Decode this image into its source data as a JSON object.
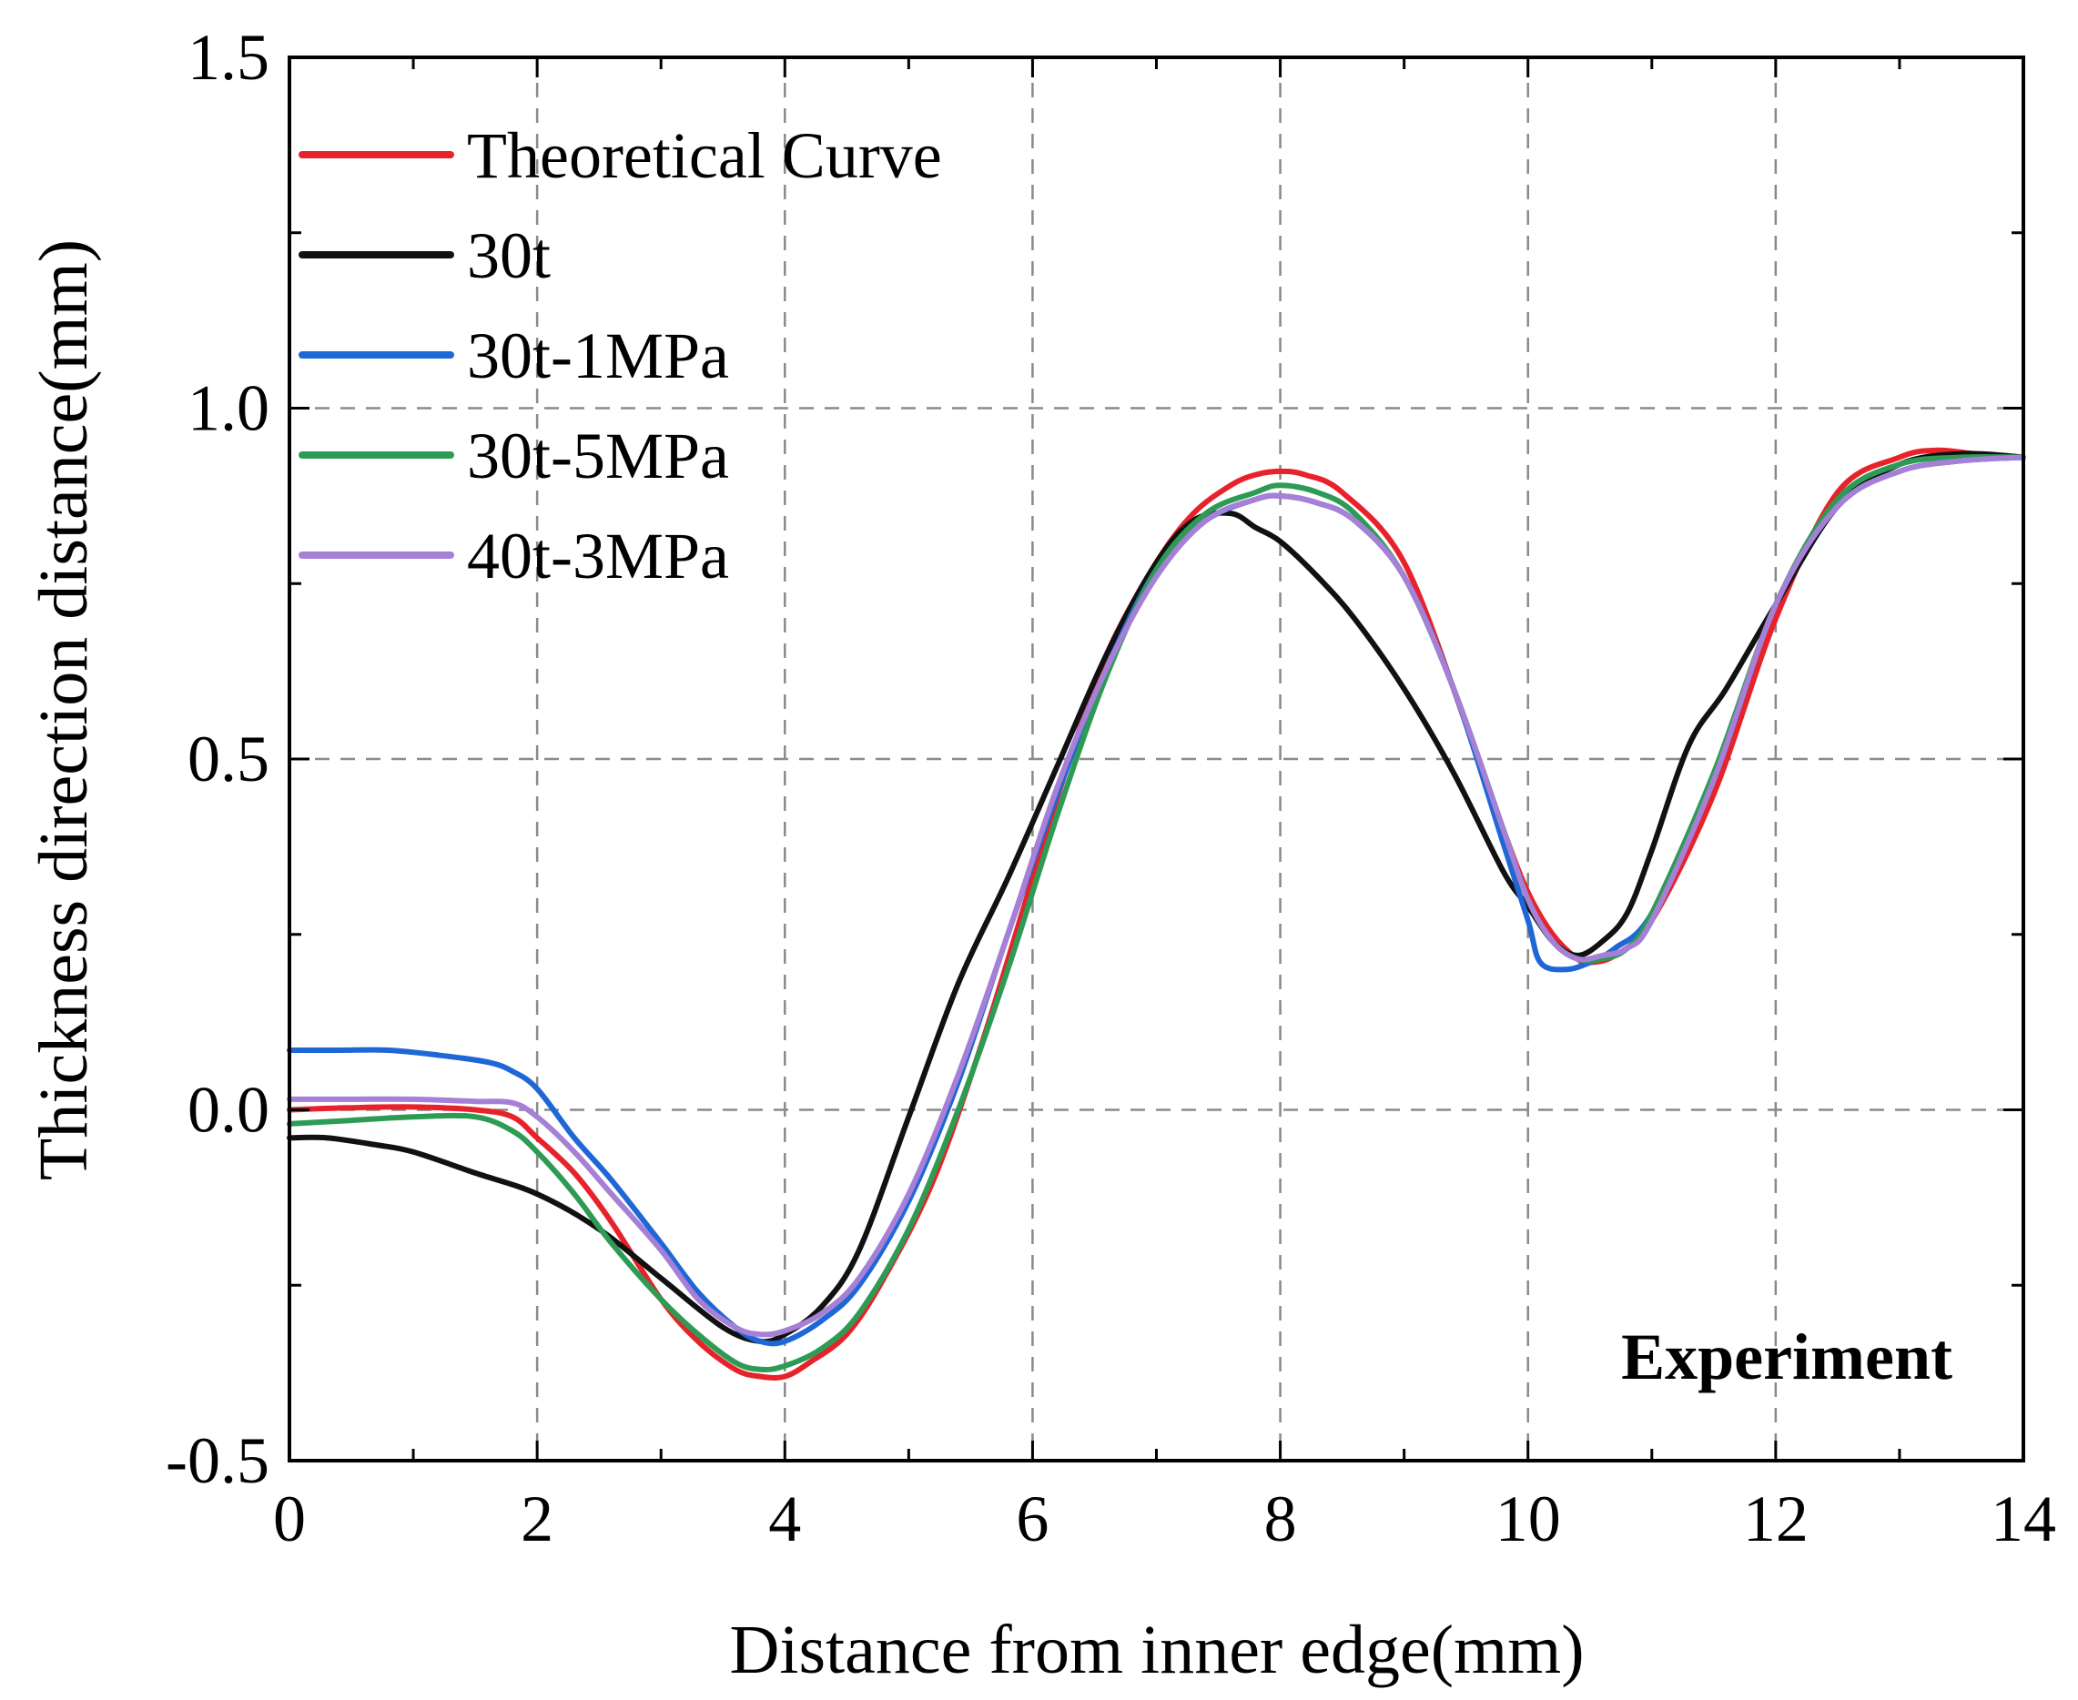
{
  "chart_data": {
    "type": "line",
    "title": "",
    "xlabel": "Distance from inner edge(mm)",
    "ylabel": "Thickness direction distance(mm)",
    "xlim": [
      0,
      14
    ],
    "ylim": [
      -0.5,
      1.5
    ],
    "xticks": [
      0,
      2,
      4,
      6,
      8,
      10,
      12,
      14
    ],
    "xtick_labels": [
      "0",
      "2",
      "4",
      "6",
      "8",
      "10",
      "12",
      "14"
    ],
    "yticks": [
      -0.5,
      0.0,
      0.5,
      1.0,
      1.5
    ],
    "ytick_labels": [
      "-0.5",
      "0.0",
      "0.5",
      "1.0",
      "1.5"
    ],
    "grid": true,
    "legend_position": "top-left",
    "annotation": "Experiment",
    "series": [
      {
        "name": "Theoretical Curve",
        "color": "#e8222a",
        "x": [
          0,
          0.5,
          1,
          1.5,
          1.8,
          2,
          2.3,
          2.6,
          3,
          3.3,
          3.6,
          3.8,
          4,
          4.2,
          4.5,
          4.8,
          5.2,
          5.6,
          6,
          6.3,
          6.6,
          7,
          7.3,
          7.6,
          7.8,
          8,
          8.2,
          8.5,
          9,
          9.5,
          9.8,
          10,
          10.2,
          10.4,
          10.5,
          10.7,
          11,
          11.5,
          12,
          12.5,
          13,
          13.3,
          13.6,
          14
        ],
        "y": [
          0.0,
          0.003,
          0.004,
          0.0,
          -0.01,
          -0.04,
          -0.09,
          -0.16,
          -0.27,
          -0.33,
          -0.37,
          -0.38,
          -0.38,
          -0.36,
          -0.32,
          -0.24,
          -0.1,
          0.1,
          0.33,
          0.5,
          0.65,
          0.78,
          0.85,
          0.89,
          0.905,
          0.91,
          0.905,
          0.88,
          0.78,
          0.55,
          0.4,
          0.31,
          0.25,
          0.215,
          0.21,
          0.22,
          0.27,
          0.45,
          0.7,
          0.88,
          0.93,
          0.94,
          0.935,
          0.93
        ]
      },
      {
        "name": "30t",
        "color": "#111111",
        "x": [
          0,
          0.3,
          0.7,
          1,
          1.5,
          2,
          2.5,
          3,
          3.5,
          3.8,
          4,
          4.3,
          4.6,
          5,
          5.4,
          5.8,
          6.2,
          6.6,
          7,
          7.3,
          7.6,
          7.8,
          8,
          8.3,
          8.6,
          9,
          9.4,
          9.8,
          10,
          10.2,
          10.4,
          10.6,
          10.8,
          11,
          11.3,
          11.6,
          12,
          12.5,
          13,
          13.5,
          14
        ],
        "y": [
          -0.04,
          -0.04,
          -0.05,
          -0.06,
          -0.09,
          -0.12,
          -0.17,
          -0.24,
          -0.31,
          -0.33,
          -0.32,
          -0.28,
          -0.2,
          -0.01,
          0.18,
          0.33,
          0.49,
          0.65,
          0.78,
          0.84,
          0.85,
          0.83,
          0.81,
          0.76,
          0.7,
          0.6,
          0.48,
          0.34,
          0.29,
          0.24,
          0.22,
          0.24,
          0.28,
          0.37,
          0.52,
          0.6,
          0.72,
          0.86,
          0.92,
          0.935,
          0.93
        ]
      },
      {
        "name": "30t-1MPa",
        "color": "#1f66d6",
        "x": [
          0,
          0.4,
          0.8,
          1.2,
          1.6,
          1.8,
          2,
          2.3,
          2.6,
          3,
          3.3,
          3.6,
          3.8,
          4,
          4.3,
          4.6,
          5,
          5.4,
          5.8,
          6.2,
          6.6,
          7,
          7.4,
          7.8,
          8,
          8.3,
          8.6,
          9,
          9.4,
          9.8,
          10,
          10.1,
          10.3,
          10.5,
          10.7,
          11,
          11.5,
          12,
          12.5,
          13,
          13.5,
          14
        ],
        "y": [
          0.085,
          0.085,
          0.085,
          0.078,
          0.068,
          0.055,
          0.03,
          -0.04,
          -0.1,
          -0.19,
          -0.26,
          -0.31,
          -0.33,
          -0.33,
          -0.3,
          -0.25,
          -0.13,
          0.04,
          0.25,
          0.45,
          0.63,
          0.77,
          0.84,
          0.87,
          0.875,
          0.865,
          0.84,
          0.76,
          0.6,
          0.38,
          0.27,
          0.21,
          0.2,
          0.21,
          0.23,
          0.28,
          0.47,
          0.72,
          0.86,
          0.91,
          0.925,
          0.93
        ]
      },
      {
        "name": "30t-5MPa",
        "color": "#2e9b55",
        "x": [
          0,
          0.5,
          1,
          1.5,
          1.8,
          2,
          2.3,
          2.6,
          3,
          3.3,
          3.6,
          3.8,
          4,
          4.3,
          4.6,
          5,
          5.4,
          5.8,
          6.2,
          6.6,
          7,
          7.4,
          7.8,
          8,
          8.3,
          8.6,
          9,
          9.4,
          9.8,
          10,
          10.2,
          10.4,
          10.6,
          10.8,
          11,
          11.5,
          12,
          12.5,
          13,
          13.5,
          14
        ],
        "y": [
          -0.02,
          -0.015,
          -0.01,
          -0.01,
          -0.03,
          -0.06,
          -0.12,
          -0.19,
          -0.27,
          -0.32,
          -0.36,
          -0.37,
          -0.365,
          -0.34,
          -0.29,
          -0.17,
          0.0,
          0.2,
          0.42,
          0.62,
          0.77,
          0.85,
          0.88,
          0.89,
          0.88,
          0.85,
          0.76,
          0.6,
          0.4,
          0.3,
          0.24,
          0.215,
          0.215,
          0.23,
          0.28,
          0.48,
          0.72,
          0.87,
          0.92,
          0.93,
          0.93
        ]
      },
      {
        "name": "40t-3MPa",
        "color": "#a67fd6",
        "x": [
          0,
          0.5,
          1,
          1.5,
          1.8,
          2,
          2.3,
          2.6,
          3,
          3.3,
          3.6,
          3.8,
          4,
          4.3,
          4.6,
          5,
          5.4,
          5.8,
          6.2,
          6.6,
          7,
          7.4,
          7.8,
          8,
          8.3,
          8.6,
          9,
          9.4,
          9.8,
          10,
          10.2,
          10.4,
          10.6,
          10.8,
          11,
          11.5,
          12,
          12.5,
          13,
          13.5,
          14
        ],
        "y": [
          0.015,
          0.015,
          0.015,
          0.012,
          0.01,
          -0.01,
          -0.06,
          -0.12,
          -0.2,
          -0.27,
          -0.31,
          -0.32,
          -0.315,
          -0.29,
          -0.24,
          -0.12,
          0.05,
          0.25,
          0.46,
          0.63,
          0.76,
          0.84,
          0.87,
          0.875,
          0.865,
          0.84,
          0.76,
          0.6,
          0.4,
          0.3,
          0.24,
          0.215,
          0.22,
          0.23,
          0.27,
          0.47,
          0.72,
          0.86,
          0.91,
          0.925,
          0.93
        ]
      }
    ]
  }
}
